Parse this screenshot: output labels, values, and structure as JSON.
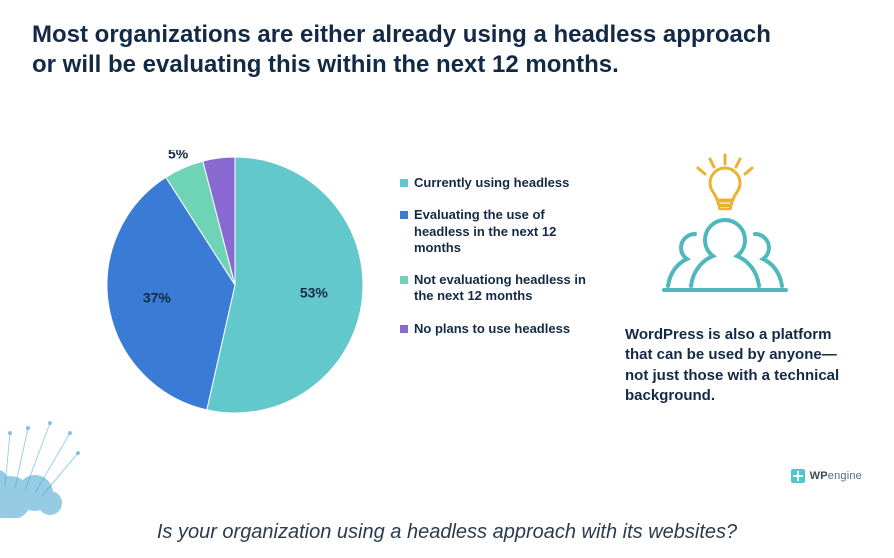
{
  "title": "Most organizations are either already using a headless approach or will be evaluating this within the next 12 months.",
  "caption": "Is your organization using a headless approach with its websites?",
  "pie": {
    "type": "pie",
    "background_color": "#ffffff",
    "label_fontsize": 14,
    "slices": [
      {
        "label": "Currently using headless",
        "value": 53,
        "pct": "53%",
        "color": "#62c8cb"
      },
      {
        "label": "Evaluating the use of headless in the next 12 months",
        "value": 37,
        "pct": "37%",
        "color": "#3a7bd5"
      },
      {
        "label": "Not evaluationg headless in the next 12 months",
        "value": 5,
        "pct": "5%",
        "color": "#6fd3b6"
      },
      {
        "label": "No plans to use headless",
        "value": 4,
        "pct": "4%",
        "color": "#8a6ad0"
      }
    ],
    "start_angle_deg": -90,
    "stroke": {
      "color": "#ffffff",
      "width": 1
    }
  },
  "legend": {
    "fontsize": 13,
    "fontweight": "700",
    "items": [
      {
        "label": "Currently using headless",
        "swatch": "#62c8cb"
      },
      {
        "label": "Evaluating the use of headless in the next 12 months",
        "swatch": "#3a7bd5"
      },
      {
        "label": "Not evaluationg headless in the next 12 months",
        "swatch": "#6fd3b6"
      },
      {
        "label": "No plans to use headless",
        "swatch": "#8a6ad0"
      }
    ]
  },
  "side_text": "WordPress is also a platform that can be used by anyone—not just those with a technical background.",
  "logo": {
    "brand_bold": "WP",
    "brand_rest": "engine",
    "mark_color": "#4fc6c9"
  },
  "illustration": {
    "stroke_color": "#4fb8bd",
    "bulb_color": "#e9b330",
    "rays_color": "#e9b330"
  },
  "title_style": {
    "color": "#132a46",
    "fontsize": 24,
    "fontweight": 700
  },
  "caption_style": {
    "color": "#2b3b4e",
    "fontsize": 20,
    "italic": true
  }
}
